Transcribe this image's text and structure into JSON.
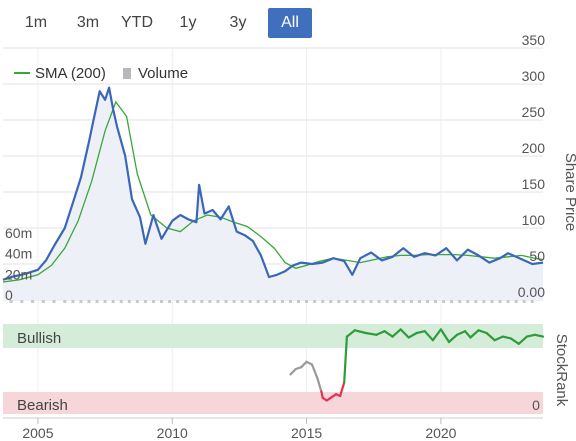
{
  "range_buttons": [
    {
      "label": "1m"
    },
    {
      "label": "3m"
    },
    {
      "label": "YTD"
    },
    {
      "label": "1y"
    },
    {
      "label": "3y"
    },
    {
      "label": "All",
      "active": true
    }
  ],
  "legend": {
    "sma_label": "SMA (200)",
    "volume_label": "Volume"
  },
  "colors": {
    "price": "#3a67b7",
    "sma": "#3aa63a",
    "volume": "#c8c8cc",
    "area_fill": "#eef0f7",
    "active_button": "#3f6fbd",
    "bullish_band": "#d4ecd8",
    "bearish_band": "#f6d6d8",
    "rank_bullish": "#2e9c3a",
    "rank_neutral": "#999999",
    "rank_bearish": "#e0344f"
  },
  "chart_data": [
    {
      "type": "line",
      "x_unit": "year",
      "xlim": [
        2003.7,
        2023.8
      ],
      "x_ticks": [
        "2005",
        "2010",
        "2015",
        "2020"
      ],
      "x_tick_values": [
        2005,
        2010,
        2015,
        2020
      ],
      "right_axis_label": "Share Price",
      "right_ticks": [
        "0.00",
        "50",
        "100",
        "150",
        "200",
        "250",
        "300",
        "350"
      ],
      "right_tick_values": [
        0,
        50,
        100,
        150,
        200,
        250,
        300,
        350
      ],
      "ylim": [
        0,
        350
      ],
      "left_ticks": [
        "0",
        "20m",
        "40m",
        "60m"
      ],
      "left_tick_values": [
        0,
        20,
        40,
        60
      ],
      "volume_ylim": [
        0,
        150
      ],
      "series": [
        {
          "name": "Share Price",
          "x": [
            2003.7,
            2004.0,
            2004.5,
            2005.0,
            2005.3,
            2005.6,
            2006.0,
            2006.3,
            2006.6,
            2006.9,
            2007.1,
            2007.3,
            2007.5,
            2007.65,
            2007.8,
            2007.95,
            2008.1,
            2008.25,
            2008.5,
            2008.8,
            2009.0,
            2009.3,
            2009.6,
            2010.0,
            2010.3,
            2010.6,
            2010.9,
            2011.0,
            2011.2,
            2011.5,
            2011.8,
            2012.1,
            2012.4,
            2012.7,
            2013.0,
            2013.3,
            2013.6,
            2013.9,
            2014.2,
            2014.5,
            2014.8,
            2015.2,
            2015.6,
            2016.0,
            2016.4,
            2016.7,
            2017.0,
            2017.4,
            2017.8,
            2018.2,
            2018.6,
            2019.0,
            2019.4,
            2019.8,
            2020.2,
            2020.6,
            2021.0,
            2021.4,
            2021.8,
            2022.2,
            2022.5,
            2022.8,
            2023.1,
            2023.4,
            2023.8
          ],
          "values": [
            28,
            32,
            36,
            42,
            55,
            75,
            100,
            135,
            170,
            220,
            255,
            290,
            278,
            295,
            265,
            240,
            220,
            200,
            140,
            115,
            78,
            118,
            85,
            110,
            118,
            112,
            108,
            160,
            120,
            125,
            112,
            130,
            95,
            90,
            82,
            62,
            32,
            35,
            40,
            48,
            52,
            50,
            52,
            58,
            54,
            35,
            58,
            66,
            55,
            60,
            72,
            60,
            65,
            62,
            72,
            55,
            70,
            62,
            52,
            58,
            65,
            60,
            55,
            50,
            52
          ]
        },
        {
          "name": "SMA (200)",
          "x": [
            2003.7,
            2004.3,
            2005.0,
            2005.5,
            2006.0,
            2006.5,
            2007.0,
            2007.5,
            2007.9,
            2008.3,
            2008.7,
            2009.2,
            2009.8,
            2010.3,
            2010.8,
            2011.3,
            2011.8,
            2012.3,
            2012.8,
            2013.3,
            2013.8,
            2014.2,
            2014.6,
            2015.0,
            2015.5,
            2016.0,
            2016.5,
            2017.0,
            2017.5,
            2018.0,
            2018.5,
            2019.0,
            2019.5,
            2020.0,
            2020.5,
            2021.0,
            2021.5,
            2022.0,
            2022.5,
            2023.0,
            2023.5,
            2023.8
          ],
          "values": [
            25,
            28,
            35,
            48,
            72,
            110,
            165,
            235,
            275,
            255,
            175,
            118,
            100,
            95,
            110,
            118,
            115,
            108,
            102,
            88,
            72,
            52,
            44,
            48,
            54,
            58,
            55,
            52,
            56,
            60,
            62,
            62,
            63,
            63,
            63,
            62,
            60,
            58,
            60,
            62,
            58,
            56
          ]
        },
        {
          "name": "Volume",
          "x": [
            2004.0,
            2004.4,
            2004.8,
            2005.2,
            2005.6,
            2006.0,
            2006.3,
            2006.6,
            2006.9,
            2007.2,
            2007.5,
            2007.8,
            2008.1,
            2008.4,
            2008.7,
            2009.0,
            2009.3,
            2009.6,
            2009.9,
            2010.2,
            2010.5,
            2010.8,
            2011.1,
            2011.4,
            2011.7,
            2012.0,
            2012.3,
            2012.6,
            2012.9,
            2013.2,
            2013.5,
            2013.8,
            2014.1,
            2014.4,
            2014.7,
            2015.0,
            2015.3,
            2015.6,
            2015.9,
            2016.2,
            2016.5,
            2016.8,
            2017.1,
            2017.4,
            2017.7,
            2018.0,
            2018.3,
            2018.6,
            2018.9,
            2019.2,
            2019.5,
            2019.8,
            2020.1,
            2020.4,
            2020.7,
            2021.0,
            2021.3,
            2021.6,
            2021.9,
            2022.2,
            2022.5,
            2022.8,
            2023.1,
            2023.4
          ],
          "values": [
            10,
            14,
            12,
            18,
            20,
            28,
            25,
            35,
            30,
            22,
            45,
            38,
            30,
            32,
            26,
            20,
            22,
            18,
            16,
            14,
            12,
            10,
            16,
            14,
            8,
            12,
            20,
            10,
            14,
            12,
            10,
            6,
            10,
            30,
            8,
            14,
            6,
            12,
            8,
            22,
            12,
            8,
            10,
            12,
            8,
            18,
            6,
            14,
            8,
            10,
            6,
            8,
            12,
            26,
            10,
            8,
            6,
            10,
            8,
            10,
            6,
            4,
            8,
            12
          ]
        }
      ]
    },
    {
      "type": "line",
      "x_unit": "year",
      "xlim": [
        2003.7,
        2023.8
      ],
      "right_axis_label": "StockRank",
      "right_ticks": [
        "0"
      ],
      "right_tick_values": [
        0
      ],
      "ylim": [
        0,
        100
      ],
      "bands": [
        {
          "label": "Bullish",
          "from": 80,
          "to": 100
        },
        {
          "label": "Bearish",
          "from": 0,
          "to": 12
        }
      ],
      "series": [
        {
          "name": "StockRank",
          "x": [
            2014.4,
            2014.6,
            2014.8,
            2015.0,
            2015.2,
            2015.4,
            2015.55,
            2015.6,
            2015.75,
            2015.9,
            2016.1,
            2016.25,
            2016.4,
            2016.5,
            2016.8,
            2017.2,
            2017.6,
            2017.9,
            2018.2,
            2018.5,
            2018.8,
            2019.1,
            2019.4,
            2019.7,
            2020.0,
            2020.3,
            2020.6,
            2020.9,
            2021.1,
            2021.4,
            2021.7,
            2022.0,
            2022.3,
            2022.6,
            2022.9,
            2023.2,
            2023.5,
            2023.8
          ],
          "values": [
            44,
            50,
            52,
            58,
            55,
            40,
            25,
            18,
            15,
            18,
            22,
            20,
            35,
            86,
            93,
            90,
            88,
            92,
            86,
            94,
            85,
            90,
            92,
            82,
            94,
            80,
            88,
            92,
            85,
            93,
            90,
            82,
            86,
            84,
            78,
            86,
            88,
            86
          ]
        }
      ]
    }
  ]
}
